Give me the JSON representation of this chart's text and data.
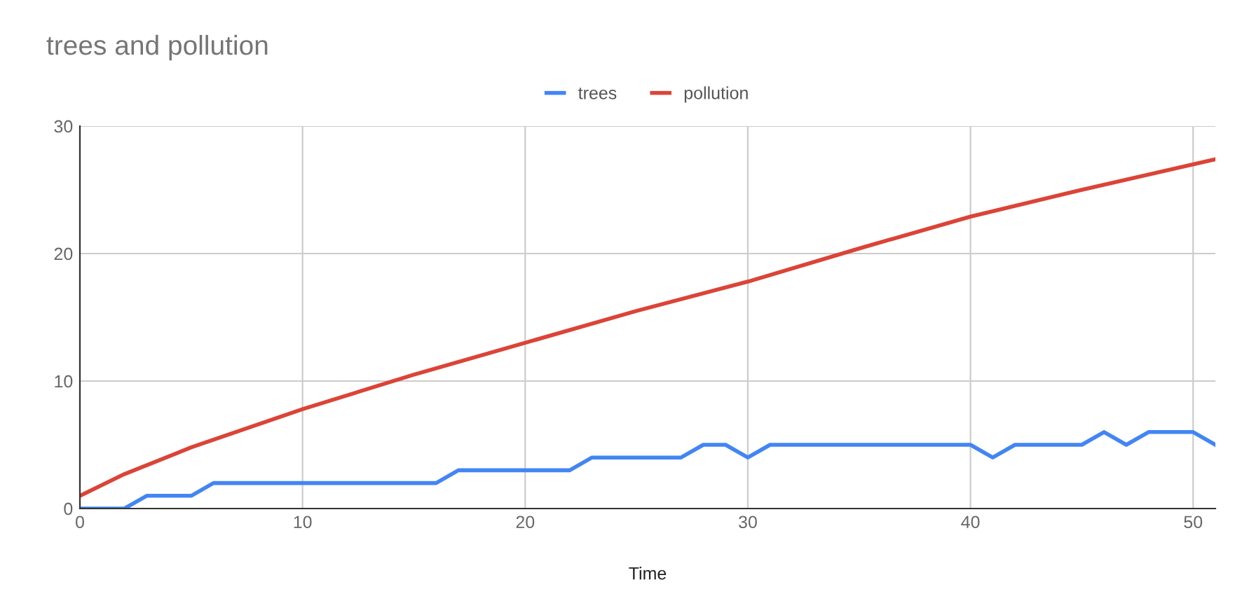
{
  "chart_data": {
    "type": "line",
    "title": "trees and pollution",
    "xlabel": "Time",
    "series": [
      {
        "name": "trees",
        "color": "#4285f4",
        "x": [
          0,
          1,
          2,
          3,
          4,
          5,
          6,
          7,
          8,
          9,
          10,
          11,
          12,
          13,
          14,
          15,
          16,
          17,
          18,
          19,
          20,
          21,
          22,
          23,
          24,
          25,
          26,
          27,
          28,
          29,
          30,
          31,
          32,
          33,
          34,
          35,
          36,
          37,
          38,
          39,
          40,
          41,
          42,
          43,
          44,
          45,
          46,
          47,
          48,
          49,
          50,
          51
        ],
        "values": [
          0,
          0,
          0,
          1,
          1,
          1,
          2,
          2,
          2,
          2,
          2,
          2,
          2,
          2,
          2,
          2,
          2,
          3,
          3,
          3,
          3,
          3,
          3,
          4,
          4,
          4,
          4,
          4,
          5,
          5,
          4,
          5,
          5,
          5,
          5,
          5,
          5,
          5,
          5,
          5,
          5,
          4,
          5,
          5,
          5,
          5,
          6,
          5,
          6,
          6,
          6,
          5
        ]
      },
      {
        "name": "pollution",
        "color": "#db4437",
        "x": [
          0,
          2,
          5,
          10,
          15,
          20,
          25,
          30,
          35,
          40,
          45,
          51
        ],
        "values": [
          1.0,
          2.7,
          4.8,
          7.8,
          10.5,
          13.0,
          15.5,
          17.8,
          20.4,
          22.9,
          25.0,
          27.4
        ]
      }
    ],
    "xlim": [
      0,
      51
    ],
    "xticks": [
      0,
      10,
      20,
      30,
      40,
      50
    ],
    "ylim": [
      0,
      30
    ],
    "yticks": [
      0,
      10,
      20,
      30
    ],
    "grid": true,
    "legend": "top",
    "marker": "none",
    "line_style": "solid"
  }
}
